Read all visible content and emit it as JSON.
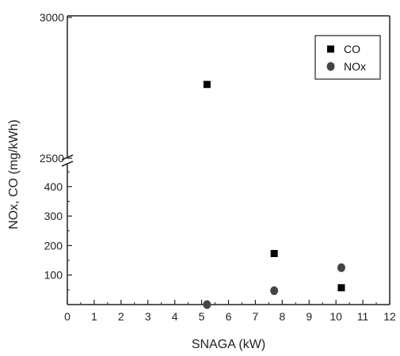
{
  "chart_data": {
    "type": "scatter",
    "xlabel": "SNAGA (kW)",
    "ylabel": "NOx, CO (mg/kWh)",
    "xlim": [
      0,
      12
    ],
    "x_ticks": [
      "0",
      "1",
      "2",
      "3",
      "4",
      "5",
      "6",
      "7",
      "8",
      "9",
      "10",
      "11",
      "12"
    ],
    "y_axis_broken": true,
    "y_lower_range": [
      0,
      480
    ],
    "y_upper_range": [
      2500,
      3000
    ],
    "y_lower_ticks": [
      "100",
      "200",
      "300",
      "400"
    ],
    "y_upper_ticks": [
      "2500",
      "3000"
    ],
    "legend_position": "top-right",
    "grid": false,
    "series": [
      {
        "name": "CO",
        "marker": "square",
        "color": "#000000",
        "x": [
          5.2,
          7.7,
          10.2
        ],
        "y": [
          2762,
          173,
          57
        ]
      },
      {
        "name": "NOx",
        "marker": "circle",
        "color": "#444444",
        "x": [
          5.2,
          7.7,
          10.2
        ],
        "y": [
          0,
          47,
          125
        ]
      }
    ]
  }
}
